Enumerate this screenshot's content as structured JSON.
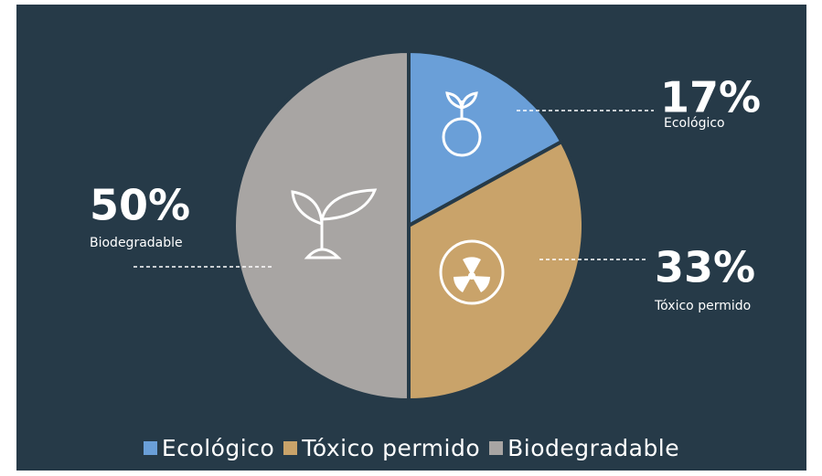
{
  "chart_data": {
    "type": "pie",
    "categories": [
      "Ecológico",
      "Tóxico permido",
      "Biodegradable"
    ],
    "values": [
      17,
      33,
      50
    ],
    "value_labels": [
      "17%",
      "33%",
      "50%"
    ],
    "colors": [
      "#6a9fd8",
      "#c9a36a",
      "#a8a5a3"
    ],
    "legend": "bottom"
  }
}
